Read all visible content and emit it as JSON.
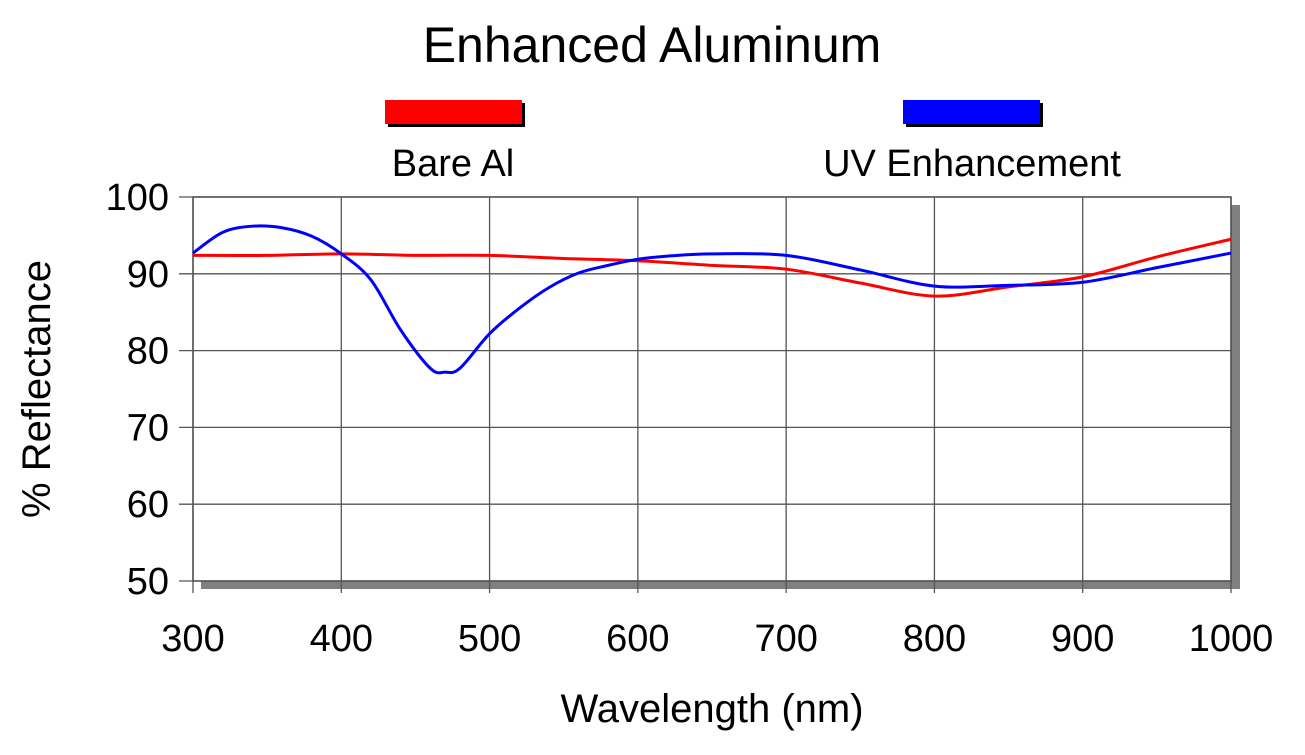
{
  "chart_data": {
    "type": "line",
    "title": "Enhanced Aluminum",
    "xlabel": "Wavelength (nm)",
    "ylabel": "% Reflectance",
    "xlim": [
      300,
      1000
    ],
    "ylim": [
      50,
      100
    ],
    "xticks": [
      300,
      400,
      500,
      600,
      700,
      800,
      900,
      1000
    ],
    "yticks": [
      50,
      60,
      70,
      80,
      90,
      100
    ],
    "grid": true,
    "legend_position": "top",
    "series": [
      {
        "name": "Bare Al",
        "color": "#ff0000",
        "x": [
          300,
          350,
          400,
          450,
          500,
          550,
          600,
          650,
          700,
          750,
          800,
          850,
          900,
          950,
          1000
        ],
        "y": [
          92.4,
          92.4,
          92.6,
          92.4,
          92.4,
          92.0,
          91.7,
          91.1,
          90.6,
          88.8,
          87.1,
          88.3,
          89.6,
          92.2,
          94.5
        ]
      },
      {
        "name": "UV Enhancement",
        "color": "#0000ff",
        "x": [
          300,
          320,
          340,
          360,
          380,
          400,
          420,
          440,
          460,
          470,
          480,
          500,
          520,
          540,
          560,
          580,
          600,
          620,
          650,
          700,
          750,
          800,
          850,
          900,
          950,
          1000
        ],
        "y": [
          92.7,
          95.4,
          96.2,
          96.0,
          94.9,
          92.6,
          89.2,
          82.7,
          77.7,
          77.2,
          77.7,
          82.2,
          85.5,
          88.2,
          90.1,
          91.1,
          91.9,
          92.3,
          92.6,
          92.4,
          90.5,
          88.4,
          88.5,
          88.9,
          90.8,
          92.7
        ]
      }
    ]
  }
}
